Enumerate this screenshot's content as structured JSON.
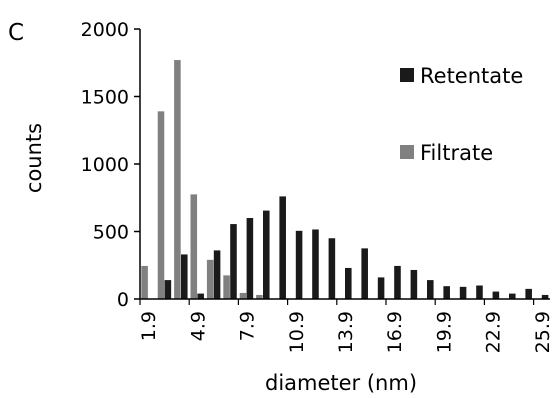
{
  "panel_label": "C",
  "chart_data": {
    "type": "bar",
    "xlabel": "diameter (nm)",
    "ylabel": "counts",
    "ylim": [
      0,
      2000
    ],
    "yticks": [
      0,
      500,
      1000,
      1500,
      2000
    ],
    "x": [
      1.9,
      2.9,
      3.9,
      4.9,
      5.9,
      6.9,
      7.9,
      8.9,
      9.9,
      10.9,
      11.9,
      12.9,
      13.9,
      14.9,
      15.9,
      16.9,
      17.9,
      18.9,
      19.9,
      20.9,
      21.9,
      22.9,
      23.9,
      24.9,
      25.9
    ],
    "xticks": [
      "1.9",
      "4.9",
      "7.9",
      "10.9",
      "13.9",
      "16.9",
      "19.9",
      "22.9",
      "25.9"
    ],
    "legend_position": "right",
    "series": [
      {
        "name": "Retentate",
        "color": "#1a1a1a",
        "values": [
          0,
          140,
          330,
          40,
          360,
          555,
          600,
          655,
          760,
          505,
          515,
          450,
          230,
          375,
          160,
          245,
          215,
          140,
          95,
          90,
          100,
          55,
          40,
          75,
          30
        ]
      },
      {
        "name": "Filtrate",
        "color": "#808080",
        "values": [
          245,
          1390,
          1770,
          775,
          290,
          175,
          45,
          30,
          0,
          0,
          0,
          0,
          0,
          0,
          0,
          0,
          0,
          0,
          0,
          0,
          0,
          0,
          0,
          0,
          0
        ]
      }
    ]
  }
}
